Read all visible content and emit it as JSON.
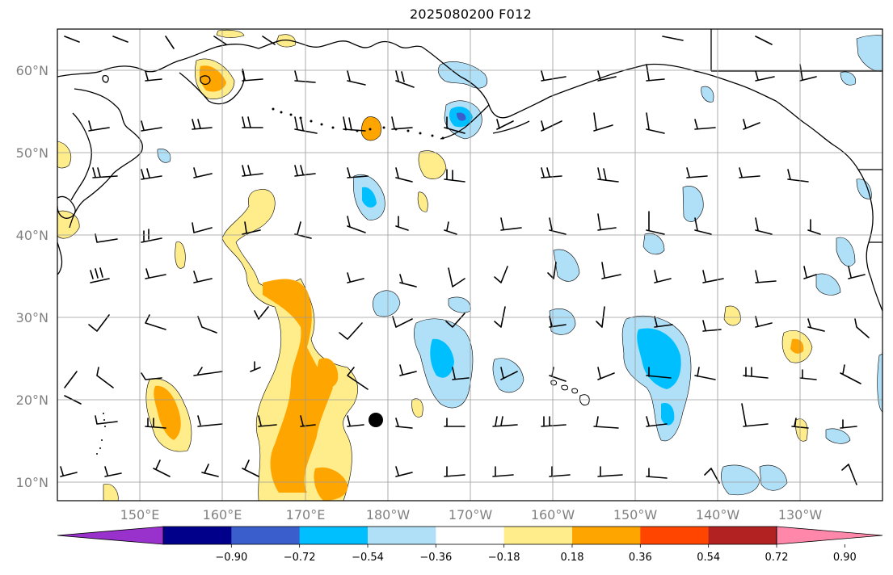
{
  "title": "2025080200 F012",
  "map": {
    "lat_labels": [
      "10°N",
      "20°N",
      "30°N",
      "40°N",
      "50°N",
      "60°N"
    ],
    "lon_labels": [
      "150°E",
      "160°E",
      "170°E",
      "180°W",
      "170°W",
      "160°W",
      "150°W",
      "140°W",
      "130°W"
    ],
    "colors": {
      "coast": "#000000",
      "grid": "#9a9a9a",
      "axis_label": "#808080"
    }
  },
  "colorbar": {
    "tick_labels": [
      "−0.90",
      "−0.72",
      "−0.54",
      "−0.36",
      "−0.18",
      "0.18",
      "0.36",
      "0.54",
      "0.72",
      "0.90"
    ],
    "colors": [
      "#9932cc",
      "#00008b",
      "#3a5fcd",
      "#00bfff",
      "#b0e0f8",
      "#ffffff",
      "#ffec8b",
      "#ffa500",
      "#ff4500",
      "#b22222",
      "#ff88aa"
    ]
  }
}
